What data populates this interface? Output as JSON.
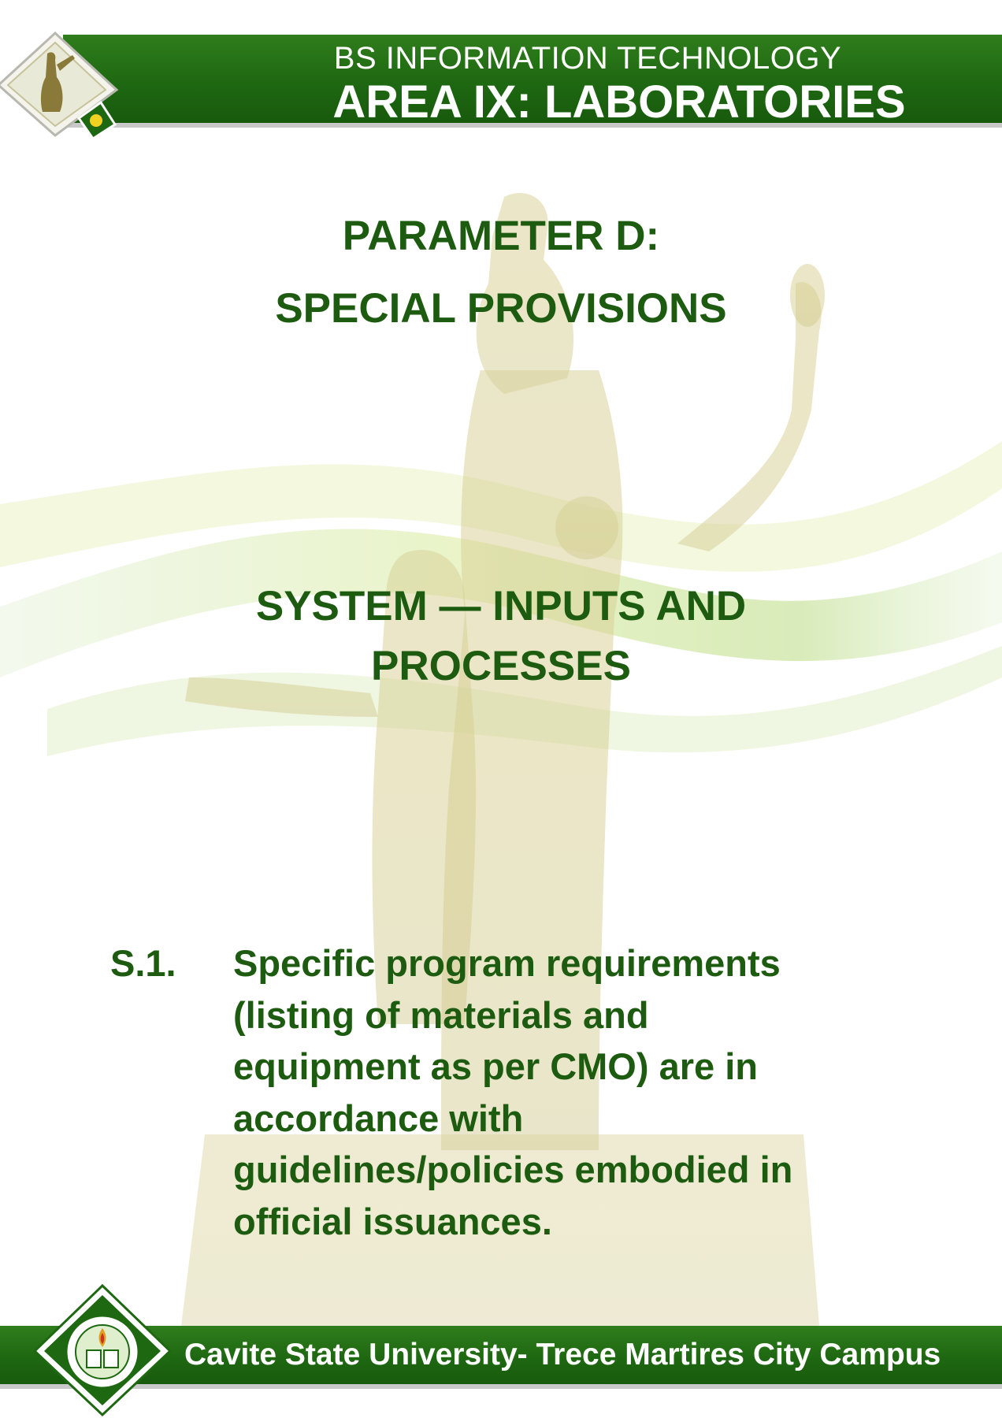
{
  "header": {
    "subtitle": "BS INFORMATION TECHNOLOGY",
    "title": "AREA IX: LABORATORIES"
  },
  "parameter": {
    "line1": "PARAMETER D:",
    "line2": "SPECIAL PROVISIONS"
  },
  "section": {
    "line1": "SYSTEM — INPUTS AND",
    "line2": "PROCESSES"
  },
  "item": {
    "number": "S.1.",
    "lines": [
      "Specific program requirements",
      "(listing of materials and",
      "equipment as per CMO) are in",
      "accordance with",
      "guidelines/policies embodied in",
      "official issuances."
    ]
  },
  "footer": {
    "text": "Cavite State University- Trece Martires City Campus"
  },
  "colors": {
    "header_green": "#1f6812",
    "heading_green": "#1d5c10",
    "divider_gray": "#c9c9c9"
  },
  "icons": {
    "header_logo": "university-monument-logo-icon",
    "footer_seal": "cavite-state-university-seal-icon",
    "background": "monument-statue-watermark"
  }
}
